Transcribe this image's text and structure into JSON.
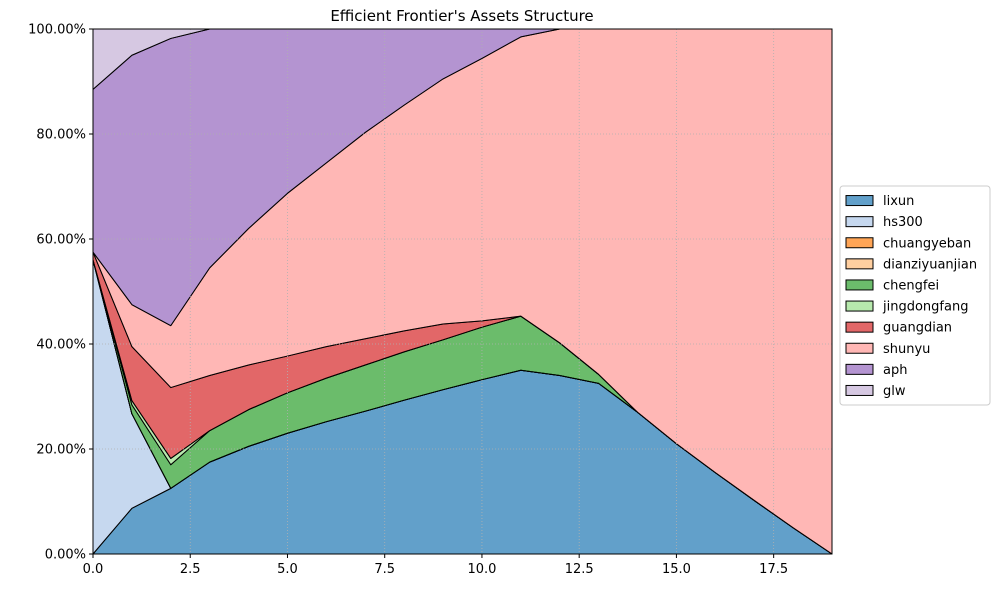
{
  "chart_data": {
    "type": "area",
    "stacked": true,
    "title": "Efficient Frontier's Assets Structure",
    "xlabel": "",
    "ylabel": "",
    "x": [
      0,
      1,
      2,
      3,
      4,
      5,
      6,
      7,
      8,
      9,
      10,
      11,
      12,
      13,
      14,
      15,
      16,
      17,
      18,
      19
    ],
    "xlim": [
      0,
      19
    ],
    "ylim": [
      0,
      1
    ],
    "x_ticks": [
      0.0,
      2.5,
      5.0,
      7.5,
      10.0,
      12.5,
      15.0,
      17.5
    ],
    "x_tick_labels": [
      "0.0",
      "2.5",
      "5.0",
      "7.5",
      "10.0",
      "12.5",
      "15.0",
      "17.5"
    ],
    "y_ticks": [
      0,
      0.2,
      0.4,
      0.6,
      0.8,
      1.0
    ],
    "y_tick_labels": [
      "0.00%",
      "20.00%",
      "40.00%",
      "60.00%",
      "80.00%",
      "100.00%"
    ],
    "grid": true,
    "legend_position": "right",
    "series": [
      {
        "name": "lixun",
        "color": "#1f77b4",
        "values": [
          0,
          0.087,
          0.125,
          0.175,
          0.205,
          0.23,
          0.252,
          0.272,
          0.293,
          0.313,
          0.332,
          0.35,
          0.34,
          0.325,
          0.27,
          0.21,
          0.155,
          0.102,
          0.05,
          0
        ]
      },
      {
        "name": "hs300",
        "color": "#aec7e8",
        "values": [
          0.56,
          0.18,
          0,
          0,
          0,
          0,
          0,
          0,
          0,
          0,
          0,
          0,
          0,
          0,
          0,
          0,
          0,
          0,
          0,
          0
        ]
      },
      {
        "name": "chuangyeban",
        "color": "#ff7f0e",
        "values": [
          0,
          0,
          0,
          0,
          0,
          0,
          0,
          0,
          0,
          0,
          0,
          0,
          0,
          0,
          0,
          0,
          0,
          0,
          0,
          0
        ]
      },
      {
        "name": "dianziyuanjian",
        "color": "#ffbb78",
        "values": [
          0,
          0,
          0,
          0,
          0,
          0,
          0,
          0,
          0,
          0,
          0,
          0,
          0,
          0,
          0,
          0,
          0,
          0,
          0,
          0
        ]
      },
      {
        "name": "chengfei",
        "color": "#2ca02c",
        "values": [
          0,
          0.017,
          0.045,
          0.06,
          0.07,
          0.077,
          0.083,
          0.088,
          0.092,
          0.095,
          0.1,
          0.103,
          0.062,
          0.017,
          0,
          0,
          0,
          0,
          0,
          0
        ]
      },
      {
        "name": "jingdongfang",
        "color": "#98df8a",
        "values": [
          0,
          0.008,
          0.012,
          0,
          0,
          0,
          0,
          0,
          0,
          0,
          0,
          0,
          0,
          0,
          0,
          0,
          0,
          0,
          0,
          0
        ]
      },
      {
        "name": "guangdian",
        "color": "#d62728",
        "values": [
          0.015,
          0.103,
          0.135,
          0.105,
          0.085,
          0.07,
          0.06,
          0.05,
          0.04,
          0.03,
          0.012,
          0,
          0,
          0,
          0,
          0,
          0,
          0,
          0,
          0
        ]
      },
      {
        "name": "shunyu",
        "color": "#ff9896",
        "values": [
          0,
          0.08,
          0.118,
          0.205,
          0.26,
          0.31,
          0.35,
          0.393,
          0.43,
          0.467,
          0.5,
          0.532,
          0.598,
          0.658,
          0.73,
          0.79,
          0.845,
          0.898,
          0.95,
          1.0
        ]
      },
      {
        "name": "aph",
        "color": "#9467bd",
        "values": [
          0.31,
          0.475,
          0.547,
          0.455,
          0.38,
          0.313,
          0.255,
          0.197,
          0.145,
          0.095,
          0.056,
          0.015,
          0,
          0,
          0,
          0,
          0,
          0,
          0,
          0
        ]
      },
      {
        "name": "glw",
        "color": "#c5b0d5",
        "values": [
          0.115,
          0.05,
          0.018,
          0,
          0,
          0,
          0,
          0,
          0,
          0,
          0,
          0,
          0,
          0,
          0,
          0,
          0,
          0,
          0,
          0
        ]
      }
    ]
  }
}
